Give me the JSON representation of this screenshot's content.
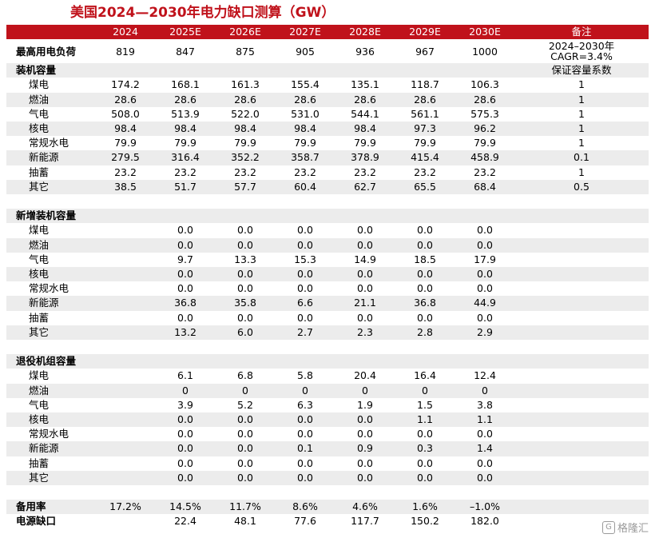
{
  "title": "美国2024—2030年电力缺口测算（GW）",
  "header": [
    "",
    "2024",
    "2025E",
    "2026E",
    "2027E",
    "2028E",
    "2029E",
    "2030E",
    "备注"
  ],
  "rows": [
    {
      "kind": "twoline",
      "label": "最高用电负荷",
      "bold": true,
      "cells": [
        "819",
        "847",
        "875",
        "905",
        "936",
        "967",
        "1000"
      ],
      "note": "2024–2030年",
      "note2": "CAGR=3.4%"
    },
    {
      "kind": "section",
      "label": "装机容量",
      "bold": true,
      "cells": [
        "",
        "",
        "",
        "",
        "",
        "",
        ""
      ],
      "note": "保证容量系数"
    },
    {
      "kind": "sub",
      "label": "煤电",
      "cells": [
        "174.2",
        "168.1",
        "161.3",
        "155.4",
        "135.1",
        "118.7",
        "106.3"
      ],
      "note": "1"
    },
    {
      "kind": "sub",
      "label": "燃油",
      "cells": [
        "28.6",
        "28.6",
        "28.6",
        "28.6",
        "28.6",
        "28.6",
        "28.6"
      ],
      "note": "1"
    },
    {
      "kind": "sub",
      "label": "气电",
      "cells": [
        "508.0",
        "513.9",
        "522.0",
        "531.0",
        "544.1",
        "561.1",
        "575.3"
      ],
      "note": "1"
    },
    {
      "kind": "sub",
      "label": "核电",
      "cells": [
        "98.4",
        "98.4",
        "98.4",
        "98.4",
        "98.4",
        "97.3",
        "96.2"
      ],
      "note": "1"
    },
    {
      "kind": "sub",
      "label": "常规水电",
      "cells": [
        "79.9",
        "79.9",
        "79.9",
        "79.9",
        "79.9",
        "79.9",
        "79.9"
      ],
      "note": "1"
    },
    {
      "kind": "sub",
      "label": "新能源",
      "cells": [
        "279.5",
        "316.4",
        "352.2",
        "358.7",
        "378.9",
        "415.4",
        "458.9"
      ],
      "note": "0.1"
    },
    {
      "kind": "sub",
      "label": "抽蓄",
      "cells": [
        "23.2",
        "23.2",
        "23.2",
        "23.2",
        "23.2",
        "23.2",
        "23.2"
      ],
      "note": "1"
    },
    {
      "kind": "sub",
      "label": "其它",
      "cells": [
        "38.5",
        "51.7",
        "57.7",
        "60.4",
        "62.7",
        "65.5",
        "68.4"
      ],
      "note": "0.5"
    },
    {
      "kind": "blank",
      "label": "",
      "cells": [
        "",
        "",
        "",
        "",
        "",
        "",
        ""
      ],
      "note": ""
    },
    {
      "kind": "section",
      "label": "新增装机容量",
      "bold": true,
      "cells": [
        "",
        "",
        "",
        "",
        "",
        "",
        ""
      ],
      "note": ""
    },
    {
      "kind": "sub",
      "label": "煤电",
      "cells": [
        "",
        "0.0",
        "0.0",
        "0.0",
        "0.0",
        "0.0",
        "0.0"
      ],
      "note": ""
    },
    {
      "kind": "sub",
      "label": "燃油",
      "cells": [
        "",
        "0.0",
        "0.0",
        "0.0",
        "0.0",
        "0.0",
        "0.0"
      ],
      "note": ""
    },
    {
      "kind": "sub",
      "label": "气电",
      "cells": [
        "",
        "9.7",
        "13.3",
        "15.3",
        "14.9",
        "18.5",
        "17.9"
      ],
      "note": ""
    },
    {
      "kind": "sub",
      "label": "核电",
      "cells": [
        "",
        "0.0",
        "0.0",
        "0.0",
        "0.0",
        "0.0",
        "0.0"
      ],
      "note": ""
    },
    {
      "kind": "sub",
      "label": "常规水电",
      "cells": [
        "",
        "0.0",
        "0.0",
        "0.0",
        "0.0",
        "0.0",
        "0.0"
      ],
      "note": ""
    },
    {
      "kind": "sub",
      "label": "新能源",
      "cells": [
        "",
        "36.8",
        "35.8",
        "6.6",
        "21.1",
        "36.8",
        "44.9"
      ],
      "note": ""
    },
    {
      "kind": "sub",
      "label": "抽蓄",
      "cells": [
        "",
        "0.0",
        "0.0",
        "0.0",
        "0.0",
        "0.0",
        "0.0"
      ],
      "note": ""
    },
    {
      "kind": "sub",
      "label": "其它",
      "cells": [
        "",
        "13.2",
        "6.0",
        "2.7",
        "2.3",
        "2.8",
        "2.9"
      ],
      "note": ""
    },
    {
      "kind": "blank",
      "label": "",
      "cells": [
        "",
        "",
        "",
        "",
        "",
        "",
        ""
      ],
      "note": ""
    },
    {
      "kind": "section",
      "label": "退役机组容量",
      "bold": true,
      "cells": [
        "",
        "",
        "",
        "",
        "",
        "",
        ""
      ],
      "note": ""
    },
    {
      "kind": "sub",
      "label": "煤电",
      "cells": [
        "",
        "6.1",
        "6.8",
        "5.8",
        "20.4",
        "16.4",
        "12.4"
      ],
      "note": ""
    },
    {
      "kind": "sub",
      "label": "燃油",
      "cells": [
        "",
        "0",
        "0",
        "0",
        "0",
        "0",
        "0"
      ],
      "note": ""
    },
    {
      "kind": "sub",
      "label": "气电",
      "cells": [
        "",
        "3.9",
        "5.2",
        "6.3",
        "1.9",
        "1.5",
        "3.8"
      ],
      "note": ""
    },
    {
      "kind": "sub",
      "label": "核电",
      "cells": [
        "",
        "0.0",
        "0.0",
        "0.0",
        "0.0",
        "1.1",
        "1.1"
      ],
      "note": ""
    },
    {
      "kind": "sub",
      "label": "常规水电",
      "cells": [
        "",
        "0.0",
        "0.0",
        "0.0",
        "0.0",
        "0.0",
        "0.0"
      ],
      "note": ""
    },
    {
      "kind": "sub",
      "label": "新能源",
      "cells": [
        "",
        "0.0",
        "0.0",
        "0.1",
        "0.9",
        "0.3",
        "1.4"
      ],
      "note": ""
    },
    {
      "kind": "sub",
      "label": "抽蓄",
      "cells": [
        "",
        "0.0",
        "0.0",
        "0.0",
        "0.0",
        "0.0",
        "0.0"
      ],
      "note": ""
    },
    {
      "kind": "sub",
      "label": "其它",
      "cells": [
        "",
        "0.0",
        "0.0",
        "0.0",
        "0.0",
        "0.0",
        "0.0"
      ],
      "note": ""
    },
    {
      "kind": "blank",
      "label": "",
      "cells": [
        "",
        "",
        "",
        "",
        "",
        "",
        ""
      ],
      "note": ""
    },
    {
      "kind": "summary",
      "label": "备用率",
      "bold": true,
      "cells": [
        "17.2%",
        "14.5%",
        "11.7%",
        "8.6%",
        "4.6%",
        "1.6%",
        "–1.0%"
      ],
      "note": ""
    },
    {
      "kind": "summary",
      "label": "电源缺口",
      "bold": true,
      "cells": [
        "",
        "22.4",
        "48.1",
        "77.6",
        "117.7",
        "150.2",
        "182.0"
      ],
      "note": ""
    }
  ],
  "watermark": {
    "icon": "gelonghui-logo-icon",
    "text": "格隆汇"
  }
}
